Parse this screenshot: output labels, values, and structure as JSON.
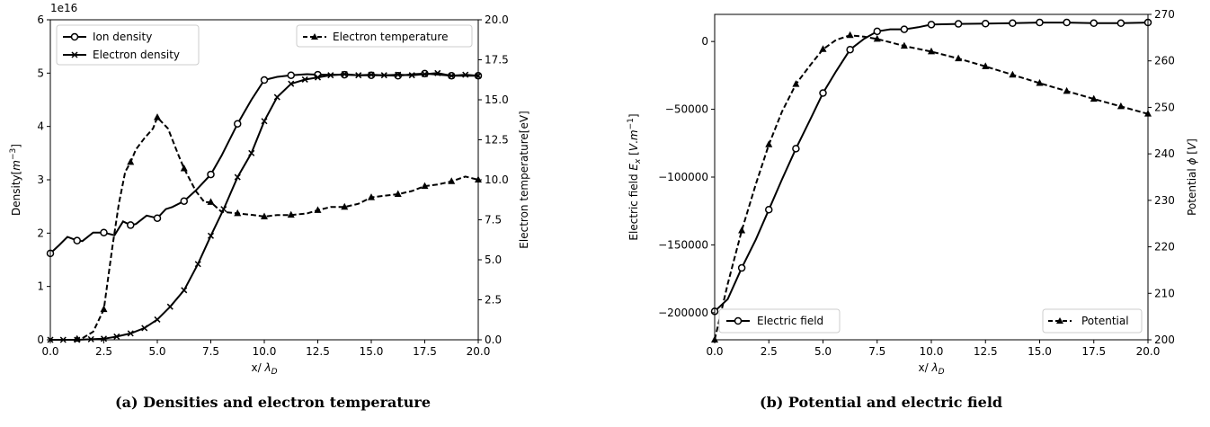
{
  "chart_data": [
    {
      "type": "line",
      "caption": "(a) Densities and electron temperature",
      "xlabel": "x/ λ_D",
      "ylabel": "Density[m^-3]",
      "y2label": "Electron temperature[eV]",
      "y_offset_label": "1e16",
      "xlim": [
        0,
        20
      ],
      "ylim": [
        0,
        6
      ],
      "y2lim": [
        0,
        20
      ],
      "grid": false,
      "x_ticks": [
        "0.0",
        "2.5",
        "5.0",
        "7.5",
        "10.0",
        "12.5",
        "15.0",
        "17.5",
        "20.0"
      ],
      "y_ticks": [
        "0",
        "1",
        "2",
        "3",
        "4",
        "5",
        "6"
      ],
      "y2_ticks": [
        "0.0",
        "2.5",
        "5.0",
        "7.5",
        "10.0",
        "12.5",
        "15.0",
        "17.5",
        "20.0"
      ],
      "legends": [
        {
          "position": "upper-left",
          "entries": [
            {
              "label": "Ion density",
              "marker": "circle",
              "style": "solid"
            },
            {
              "label": "Electron density",
              "marker": "x",
              "style": "solid"
            }
          ]
        },
        {
          "position": "upper-right",
          "entries": [
            {
              "label": "Electron temperature",
              "marker": "triangle",
              "style": "dashed"
            }
          ]
        }
      ],
      "series": [
        {
          "name": "Ion density",
          "axis": "left",
          "marker": "circle",
          "style": "solid",
          "x": [
            0,
            0.4,
            0.8,
            1.25,
            1.5,
            2.0,
            2.5,
            3.0,
            3.4,
            3.75,
            4.0,
            4.5,
            5.0,
            5.4,
            5.7,
            6.25,
            6.8,
            7.5,
            8.0,
            8.75,
            9.4,
            10.0,
            10.6,
            11.25,
            12.0,
            12.5,
            13.2,
            13.75,
            14.5,
            15.0,
            15.6,
            16.25,
            17.0,
            17.5,
            18.2,
            18.75,
            19.4,
            20.0
          ],
          "x_markers": [
            0,
            1.25,
            2.5,
            3.75,
            5.0,
            6.25,
            7.5,
            8.75,
            10.0,
            11.25,
            12.5,
            13.75,
            15.0,
            16.25,
            17.5,
            18.75,
            20.0
          ],
          "y": [
            1.62,
            1.77,
            1.93,
            1.86,
            1.85,
            2.01,
            2.01,
            1.96,
            2.22,
            2.15,
            2.17,
            2.33,
            2.28,
            2.45,
            2.49,
            2.6,
            2.8,
            3.1,
            3.45,
            4.05,
            4.5,
            4.87,
            4.93,
            4.96,
            4.98,
            4.97,
            4.97,
            4.97,
            4.96,
            4.96,
            4.96,
            4.95,
            4.98,
            4.99,
            4.97,
            4.95,
            4.95,
            4.95
          ]
        },
        {
          "name": "Electron density",
          "axis": "left",
          "marker": "x",
          "style": "solid",
          "x": [
            0,
            0.6,
            1.25,
            1.9,
            2.5,
            3.1,
            3.75,
            4.4,
            5.0,
            5.6,
            6.25,
            6.9,
            7.5,
            8.1,
            8.75,
            9.4,
            10.0,
            10.6,
            11.25,
            11.9,
            12.5,
            13.1,
            13.75,
            14.4,
            15.0,
            15.6,
            16.25,
            16.9,
            17.5,
            18.1,
            18.75,
            19.4,
            20.0
          ],
          "x_markers": [
            0,
            0.6,
            1.25,
            1.9,
            2.5,
            3.1,
            3.75,
            4.4,
            5.0,
            5.6,
            6.25,
            6.9,
            7.5,
            8.1,
            8.75,
            9.4,
            10.0,
            10.6,
            11.25,
            11.9,
            12.5,
            13.1,
            13.75,
            14.4,
            15.0,
            15.6,
            16.25,
            16.9,
            17.5,
            18.1,
            18.75,
            19.4,
            20.0
          ],
          "y": [
            0.0,
            0.0,
            0.0,
            0.01,
            0.02,
            0.06,
            0.12,
            0.22,
            0.38,
            0.62,
            0.93,
            1.42,
            1.95,
            2.45,
            3.05,
            3.5,
            4.1,
            4.55,
            4.8,
            4.88,
            4.92,
            4.96,
            4.98,
            4.96,
            4.97,
            4.96,
            4.97,
            4.96,
            4.98,
            5.0,
            4.95,
            4.97,
            4.95
          ]
        },
        {
          "name": "Electron temperature",
          "axis": "right",
          "marker": "triangle",
          "style": "dashed",
          "x": [
            0,
            0.5,
            1.0,
            1.5,
            2.0,
            2.5,
            2.9,
            3.2,
            3.5,
            3.75,
            4.0,
            4.4,
            4.8,
            5.0,
            5.5,
            6.0,
            6.25,
            6.8,
            7.2,
            7.5,
            8.0,
            8.75,
            9.5,
            10.0,
            10.6,
            11.25,
            12.0,
            12.5,
            13.1,
            13.75,
            14.4,
            15.0,
            15.6,
            16.25,
            16.9,
            17.5,
            18.1,
            18.75,
            19.4,
            20.0
          ],
          "x_markers": [
            1.25,
            2.5,
            3.75,
            5.0,
            6.25,
            7.5,
            8.75,
            10.0,
            11.25,
            12.5,
            13.75,
            15.0,
            16.25,
            17.5,
            18.75,
            20.0
          ],
          "y": [
            0.0,
            0.0,
            0.0,
            0.1,
            0.5,
            1.9,
            5.8,
            8.5,
            10.5,
            11.1,
            11.9,
            12.6,
            13.2,
            13.9,
            13.2,
            11.5,
            10.7,
            9.3,
            8.6,
            8.6,
            8.0,
            7.9,
            7.8,
            7.7,
            7.8,
            7.8,
            7.9,
            8.1,
            8.3,
            8.3,
            8.5,
            8.9,
            9.0,
            9.1,
            9.3,
            9.6,
            9.7,
            9.9,
            10.2,
            10.0
          ]
        }
      ]
    },
    {
      "type": "line",
      "caption": "(b) Potential and electric field",
      "xlabel": "x/ λ_D",
      "ylabel": "Electric field E_x [V.m^-1]",
      "y2label": "Potential ϕ [V]",
      "xlim": [
        0,
        20
      ],
      "ylim": [
        -220000,
        20000
      ],
      "y2lim": [
        200,
        270
      ],
      "grid": false,
      "x_ticks": [
        "0.0",
        "2.5",
        "5.0",
        "7.5",
        "10.0",
        "12.5",
        "15.0",
        "17.5",
        "20.0"
      ],
      "y_ticks": [
        "−200000",
        "−150000",
        "−100000",
        "−50000",
        "0"
      ],
      "y2_ticks": [
        "200",
        "210",
        "220",
        "230",
        "240",
        "250",
        "260",
        "270"
      ],
      "legends": [
        {
          "position": "lower-left",
          "entries": [
            {
              "label": "Electric field",
              "marker": "circle",
              "style": "solid"
            }
          ]
        },
        {
          "position": "lower-right",
          "entries": [
            {
              "label": "Potential",
              "marker": "triangle",
              "style": "dashed"
            }
          ]
        }
      ],
      "series": [
        {
          "name": "Electric field",
          "axis": "left",
          "marker": "circle",
          "style": "solid",
          "x": [
            0,
            0.6,
            1.25,
            1.9,
            2.5,
            3.1,
            3.75,
            4.4,
            5.0,
            5.6,
            6.25,
            6.9,
            7.5,
            8.1,
            8.75,
            9.4,
            10.0,
            11.25,
            12.5,
            13.75,
            15.0,
            16.25,
            17.5,
            18.75,
            20.0
          ],
          "x_markers": [
            0,
            1.25,
            2.5,
            3.75,
            5.0,
            6.25,
            7.5,
            8.75,
            10.0,
            11.25,
            12.5,
            13.75,
            15.0,
            16.25,
            17.5,
            18.75,
            20.0
          ],
          "y": [
            -199000,
            -190000,
            -167000,
            -146000,
            -124000,
            -102000,
            -79000,
            -58000,
            -38000,
            -22000,
            -6000,
            2000,
            7500,
            9000,
            9000,
            10500,
            12500,
            13000,
            13200,
            13500,
            14000,
            14000,
            13500,
            13500,
            14000
          ]
        },
        {
          "name": "Potential",
          "axis": "right",
          "marker": "triangle",
          "style": "dashed",
          "x": [
            0,
            0.6,
            1.25,
            1.9,
            2.5,
            3.1,
            3.75,
            4.4,
            5.0,
            5.6,
            6.25,
            6.9,
            7.5,
            8.1,
            8.75,
            10.0,
            11.25,
            12.5,
            13.75,
            15.0,
            16.25,
            17.5,
            18.75,
            20.0
          ],
          "x_markers": [
            0,
            1.25,
            2.5,
            3.75,
            5.0,
            6.25,
            7.5,
            8.75,
            10.0,
            11.25,
            12.5,
            13.75,
            15.0,
            16.25,
            17.5,
            18.75,
            20.0
          ],
          "y": [
            200,
            212,
            223.5,
            233.5,
            242,
            249,
            255,
            259,
            262.5,
            264.5,
            265.5,
            265.2,
            264.7,
            264,
            263.2,
            262,
            260.5,
            258.8,
            257,
            255.2,
            253.5,
            251.8,
            250.2,
            248.6
          ]
        }
      ]
    }
  ]
}
